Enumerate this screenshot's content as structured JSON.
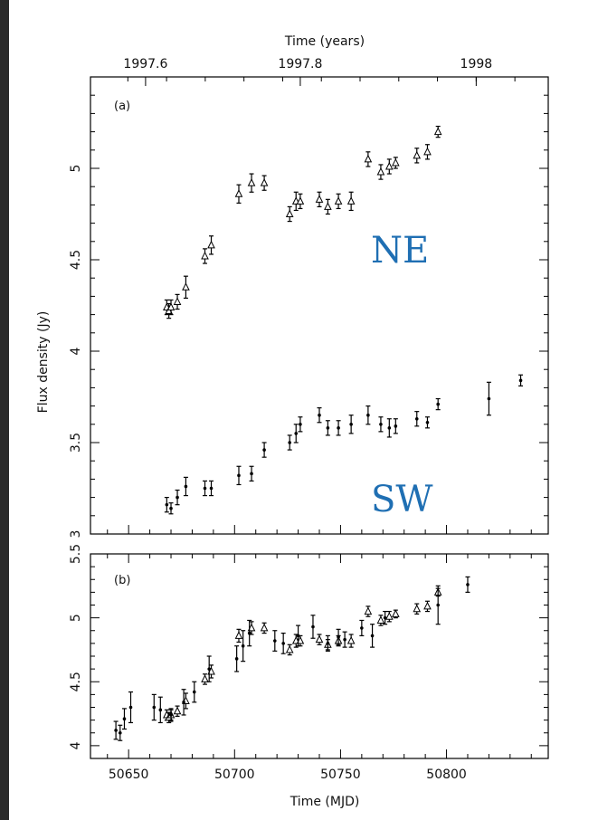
{
  "chart_data": [
    {
      "panel": "(a)",
      "type": "scatter",
      "ylabel": "Flux density (Jy)",
      "xlabel_top": "Time (years)",
      "ylim": [
        3.0,
        5.5
      ],
      "xlim": [
        50632,
        50848
      ],
      "yticks": [
        "3",
        "3.5",
        "4",
        "4.5",
        "5"
      ],
      "top_ticks": [
        {
          "label": "1997.6",
          "mjd": 50658
        },
        {
          "label": "1997.8",
          "mjd": 50731
        },
        {
          "label": "1998",
          "mjd": 50814
        }
      ],
      "annotations": [
        "NE",
        "SW"
      ],
      "series": [
        {
          "name": "NE",
          "marker": "triangle",
          "points": [
            [
              50668,
              4.24,
              0.04
            ],
            [
              50669,
              4.22,
              0.04
            ],
            [
              50670,
              4.24,
              0.04
            ],
            [
              50673,
              4.27,
              0.04
            ],
            [
              50677,
              4.35,
              0.06
            ],
            [
              50686,
              4.52,
              0.04
            ],
            [
              50689,
              4.58,
              0.05
            ],
            [
              50702,
              4.86,
              0.05
            ],
            [
              50708,
              4.92,
              0.05
            ],
            [
              50714,
              4.92,
              0.04
            ],
            [
              50726,
              4.75,
              0.04
            ],
            [
              50729,
              4.82,
              0.05
            ],
            [
              50731,
              4.82,
              0.04
            ],
            [
              50740,
              4.83,
              0.04
            ],
            [
              50744,
              4.79,
              0.04
            ],
            [
              50749,
              4.82,
              0.04
            ],
            [
              50755,
              4.82,
              0.05
            ],
            [
              50763,
              5.05,
              0.04
            ],
            [
              50769,
              4.98,
              0.04
            ],
            [
              50773,
              5.01,
              0.04
            ],
            [
              50776,
              5.03,
              0.03
            ],
            [
              50786,
              5.07,
              0.04
            ],
            [
              50791,
              5.09,
              0.04
            ],
            [
              50796,
              5.2,
              0.03
            ]
          ]
        },
        {
          "name": "SW",
          "marker": "dot",
          "points": [
            [
              50668,
              3.16,
              0.04
            ],
            [
              50670,
              3.14,
              0.03
            ],
            [
              50673,
              3.2,
              0.04
            ],
            [
              50677,
              3.26,
              0.05
            ],
            [
              50686,
              3.25,
              0.04
            ],
            [
              50689,
              3.25,
              0.04
            ],
            [
              50702,
              3.32,
              0.05
            ],
            [
              50708,
              3.33,
              0.04
            ],
            [
              50714,
              3.46,
              0.04
            ],
            [
              50726,
              3.5,
              0.04
            ],
            [
              50729,
              3.55,
              0.05
            ],
            [
              50731,
              3.6,
              0.04
            ],
            [
              50740,
              3.65,
              0.04
            ],
            [
              50744,
              3.58,
              0.04
            ],
            [
              50749,
              3.58,
              0.04
            ],
            [
              50755,
              3.6,
              0.05
            ],
            [
              50763,
              3.65,
              0.05
            ],
            [
              50769,
              3.6,
              0.04
            ],
            [
              50773,
              3.58,
              0.05
            ],
            [
              50776,
              3.59,
              0.04
            ],
            [
              50786,
              3.63,
              0.04
            ],
            [
              50791,
              3.61,
              0.03
            ],
            [
              50796,
              3.71,
              0.03
            ],
            [
              50820,
              3.74,
              0.09
            ],
            [
              50835,
              3.84,
              0.03
            ]
          ]
        }
      ]
    },
    {
      "panel": "(b)",
      "type": "scatter",
      "xlabel": "Time (MJD)",
      "ylim": [
        3.9,
        5.5
      ],
      "xlim": [
        50632,
        50848
      ],
      "yticks": [
        "4",
        "4.5",
        "5",
        "5.5"
      ],
      "xticks": [
        "50650",
        "50700",
        "50750",
        "50800"
      ],
      "series": [
        {
          "marker": "triangle",
          "points": [
            [
              50668,
              4.24,
              0.04
            ],
            [
              50669,
              4.22,
              0.04
            ],
            [
              50670,
              4.24,
              0.04
            ],
            [
              50673,
              4.27,
              0.04
            ],
            [
              50677,
              4.35,
              0.06
            ],
            [
              50686,
              4.52,
              0.04
            ],
            [
              50689,
              4.58,
              0.05
            ],
            [
              50702,
              4.86,
              0.05
            ],
            [
              50708,
              4.92,
              0.05
            ],
            [
              50714,
              4.92,
              0.04
            ],
            [
              50726,
              4.75,
              0.04
            ],
            [
              50729,
              4.82,
              0.05
            ],
            [
              50731,
              4.82,
              0.04
            ],
            [
              50740,
              4.83,
              0.04
            ],
            [
              50744,
              4.79,
              0.04
            ],
            [
              50749,
              4.82,
              0.04
            ],
            [
              50755,
              4.82,
              0.05
            ],
            [
              50763,
              5.05,
              0.04
            ],
            [
              50769,
              4.98,
              0.04
            ],
            [
              50773,
              5.01,
              0.04
            ],
            [
              50776,
              5.03,
              0.03
            ],
            [
              50786,
              5.07,
              0.04
            ],
            [
              50791,
              5.09,
              0.04
            ],
            [
              50796,
              5.2,
              0.03
            ]
          ]
        },
        {
          "marker": "dot",
          "points": [
            [
              50644,
              4.12,
              0.07
            ],
            [
              50646,
              4.1,
              0.06
            ],
            [
              50648,
              4.21,
              0.08
            ],
            [
              50651,
              4.3,
              0.12
            ],
            [
              50662,
              4.3,
              0.1
            ],
            [
              50665,
              4.28,
              0.1
            ],
            [
              50670,
              4.24,
              0.05
            ],
            [
              50676,
              4.34,
              0.1
            ],
            [
              50681,
              4.42,
              0.08
            ],
            [
              50688,
              4.6,
              0.1
            ],
            [
              50701,
              4.68,
              0.1
            ],
            [
              50704,
              4.78,
              0.12
            ],
            [
              50707,
              4.88,
              0.1
            ],
            [
              50719,
              4.82,
              0.08
            ],
            [
              50723,
              4.8,
              0.08
            ],
            [
              50730,
              4.86,
              0.08
            ],
            [
              50737,
              4.93,
              0.09
            ],
            [
              50744,
              4.8,
              0.06
            ],
            [
              50749,
              4.85,
              0.06
            ],
            [
              50752,
              4.83,
              0.06
            ],
            [
              50760,
              4.92,
              0.06
            ],
            [
              50765,
              4.86,
              0.09
            ],
            [
              50771,
              5.0,
              0.05
            ],
            [
              50796,
              5.1,
              0.15
            ],
            [
              50810,
              5.26,
              0.06
            ]
          ]
        }
      ]
    }
  ]
}
